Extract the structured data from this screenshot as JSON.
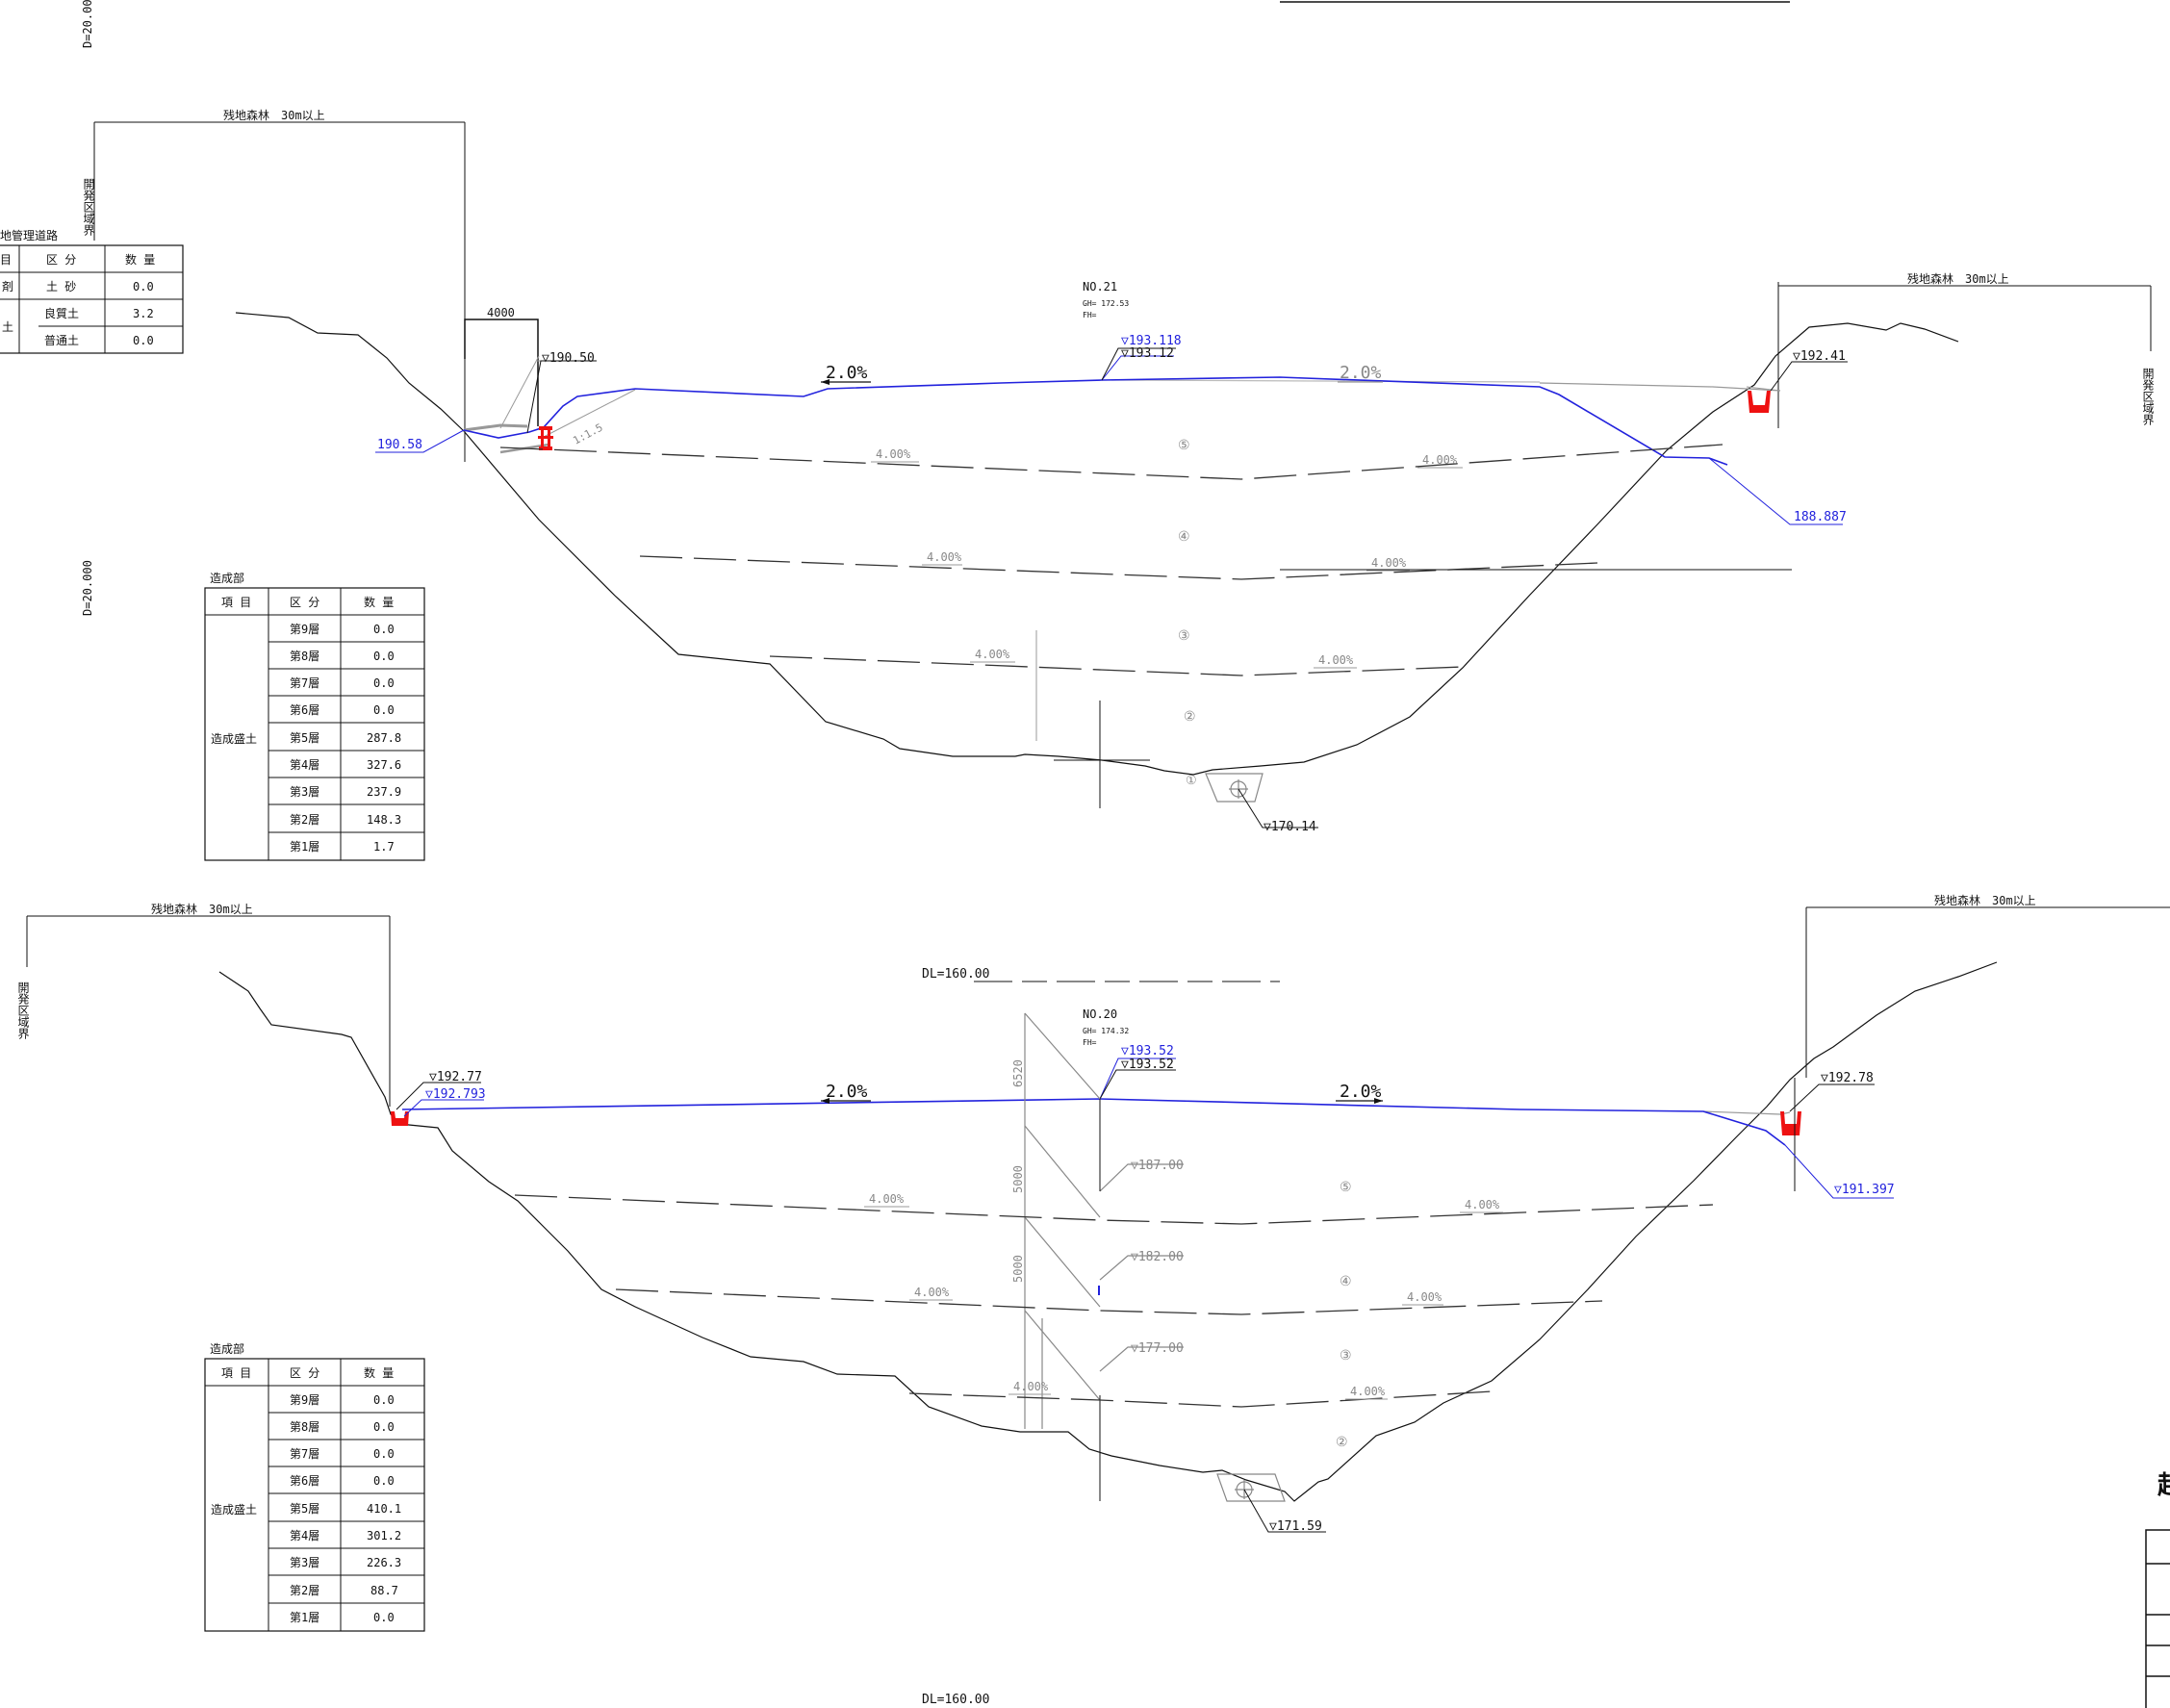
{
  "sheet": {
    "scale_top": "D=20.000",
    "scale_mid": "D=20.000",
    "datum_top": "DL=160.00",
    "datum_bottom": "DL=160.00",
    "stray_char": "起"
  },
  "section_21": {
    "station": "NO.21",
    "gh": "GH= 172.53",
    "fh": "FH=",
    "left_forest": "残地森林　30m以上",
    "right_forest": "残地森林　30m以上",
    "boundary": "開発区域界",
    "right_boundary": "開発区域界",
    "berm_width": "4000",
    "el_left_top": "▽190.50",
    "el_left_blue": "190.58",
    "el_crown_blue": "▽193.118",
    "el_crown": "▽193.12",
    "el_right_top": "▽192.41",
    "el_right_blue": "188.887",
    "el_bottom": "▽170.14",
    "slope_left": "2.0%",
    "slope_right": "2.0%",
    "slope_45_l": "4.00%",
    "slope_45_r": "4.00%",
    "slope_34_l": "4.00%",
    "slope_34_r": "4.00%",
    "slope_23_l": "4.00%",
    "slope_23_r": "4.00%",
    "layer5": "⑤",
    "layer4": "④",
    "layer3": "③",
    "layer2": "②",
    "layer1": "①"
  },
  "section_20": {
    "station": "NO.20",
    "gh": "GH= 174.32",
    "fh": "FH=",
    "left_forest": "残地森林　30m以上",
    "right_forest": "残地森林　30m以上",
    "boundary": "開発区域界",
    "el_left": "▽192.77",
    "el_left_blue": "▽192.793",
    "el_crown_blue": "▽193.52",
    "el_crown": "▽193.52",
    "el_right": "▽192.78",
    "el_right_blue": "▽191.397",
    "el_187": "▽187.00",
    "el_182": "▽182.00",
    "el_177": "▽177.00",
    "el_bottom": "▽171.59",
    "dim_6520": "6520",
    "dim_5000a": "5000",
    "dim_5000b": "5000",
    "slope_left": "2.0%",
    "slope_right": "2.0%",
    "slope_45_l": "4.00%",
    "slope_45_r": "4.00%",
    "slope_34_l": "4.00%",
    "slope_34_r": "4.00%",
    "slope_23_l": "4.00%",
    "slope_23_r": "4.00%",
    "layer5": "⑤",
    "layer4": "④",
    "layer3": "③",
    "layer2": "②"
  },
  "road_table": {
    "title": "地管理道路",
    "headers": [
      "目",
      "区 分",
      "数 量"
    ],
    "rows": [
      {
        "item": "剤",
        "cls": "土 砂",
        "qty": "0.0"
      },
      {
        "item": "土",
        "cls": "良質土",
        "qty": "3.2"
      },
      {
        "item": "",
        "cls": "普通土",
        "qty": "0.0"
      }
    ]
  },
  "table_21": {
    "title": "造成部",
    "headers": [
      "項 目",
      "区 分",
      "数 量"
    ],
    "group": "造成盛土",
    "rows": [
      {
        "layer": "第9層",
        "qty": "0.0"
      },
      {
        "layer": "第8層",
        "qty": "0.0"
      },
      {
        "layer": "第7層",
        "qty": "0.0"
      },
      {
        "layer": "第6層",
        "qty": "0.0"
      },
      {
        "layer": "第5層",
        "qty": "287.8"
      },
      {
        "layer": "第4層",
        "qty": "327.6"
      },
      {
        "layer": "第3層",
        "qty": "237.9"
      },
      {
        "layer": "第2層",
        "qty": "148.3"
      },
      {
        "layer": "第1層",
        "qty": "1.7"
      }
    ]
  },
  "table_20": {
    "title": "造成部",
    "headers": [
      "項 目",
      "区 分",
      "数 量"
    ],
    "group": "造成盛土",
    "rows": [
      {
        "layer": "第9層",
        "qty": "0.0"
      },
      {
        "layer": "第8層",
        "qty": "0.0"
      },
      {
        "layer": "第7層",
        "qty": "0.0"
      },
      {
        "layer": "第6層",
        "qty": "0.0"
      },
      {
        "layer": "第5層",
        "qty": "410.1"
      },
      {
        "layer": "第4層",
        "qty": "301.2"
      },
      {
        "layer": "第3層",
        "qty": "226.3"
      },
      {
        "layer": "第2層",
        "qty": "88.7"
      },
      {
        "layer": "第1層",
        "qty": "0.0"
      }
    ]
  },
  "colors": {
    "line": "#111111",
    "design": "#2222dd",
    "existing_gray": "#999999",
    "ditch": "#ee1111"
  }
}
